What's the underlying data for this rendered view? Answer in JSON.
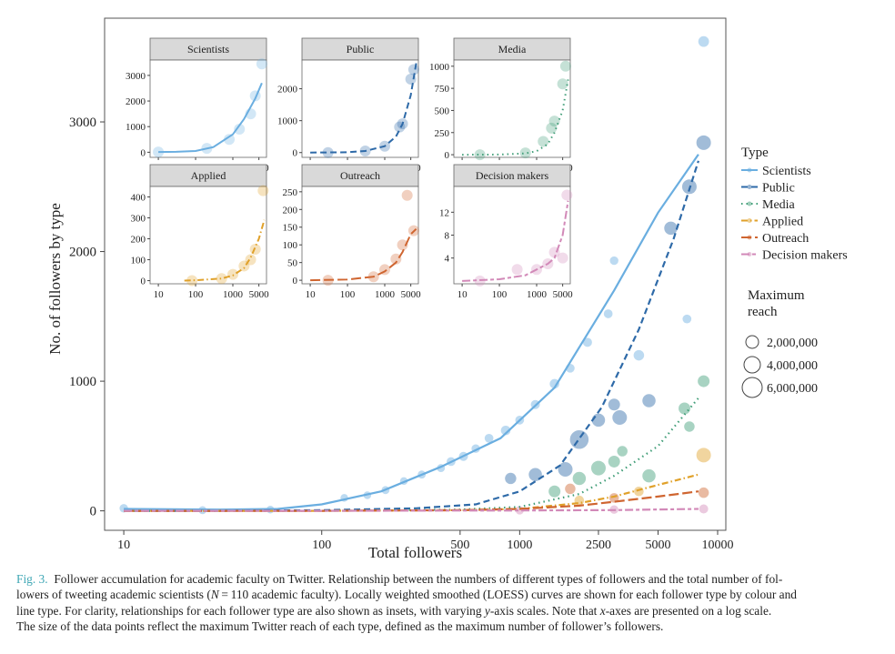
{
  "caption": {
    "label": "Fig. 3.",
    "line1": "Follower accumulation for academic faculty on Twitter. Relationship between the numbers of different types of followers and the total number of fol-",
    "line2a": "lowers of tweeting academic scientists (",
    "line2n": "N",
    "line2b": " = 110 academic faculty). Locally weighted smoothed (LOESS) curves are shown for each follower type by colour and",
    "line3a": "line type. For clarity, relationships for each follower type are also shown as insets, with varying ",
    "line3y": "y",
    "line3b": "-axis scales. Note that ",
    "line3x": "x",
    "line3c": "-axes are presented on a log scale.",
    "line4": "The size of the data points reflect the maximum Twitter reach of each type, defined as the maximum number of follower’s followers."
  },
  "colors": {
    "Scientists": "#6aaee0",
    "Public": "#2e6aa8",
    "Media": "#3f9d77",
    "Applied": "#e0a12a",
    "Outreach": "#cf6530",
    "Decision makers": "#d289b8"
  },
  "chart_data": {
    "type": "scatter",
    "title": "",
    "xlabel": "Total followers",
    "ylabel": "No. of followers by type",
    "x_scale": "log",
    "xlim": [
      8,
      11000
    ],
    "ylim": [
      -150,
      3800
    ],
    "x_ticks": [
      10,
      100,
      500,
      1000,
      2500,
      5000,
      10000
    ],
    "x_tick_labels": [
      "10",
      "100",
      "500",
      "1000",
      "2500",
      "5000",
      "10000"
    ],
    "y_ticks": [
      0,
      1000,
      2000,
      3000
    ],
    "y_tick_labels": [
      "0",
      "1000",
      "2000",
      "3000"
    ],
    "legend": {
      "title": "Type",
      "position": "right",
      "entries": [
        "Scientists",
        "Public",
        "Media",
        "Applied",
        "Outreach",
        "Decision makers"
      ],
      "dash": [
        "solid",
        "dashed",
        "dotted",
        "dashdot",
        "longdash",
        "twodash"
      ]
    },
    "size_legend": {
      "title_line1": "Maximum",
      "title_line2": "reach",
      "labels": [
        "2,000,000",
        "4,000,000",
        "6,000,000"
      ],
      "values": [
        2000000,
        4000000,
        6000000
      ]
    },
    "loess_curves": [
      {
        "name": "Scientists",
        "x": [
          10,
          30,
          60,
          100,
          200,
          400,
          800,
          1500,
          3000,
          5000,
          8000
        ],
        "y": [
          15,
          10,
          15,
          50,
          150,
          340,
          560,
          950,
          1700,
          2300,
          2750
        ]
      },
      {
        "name": "Public",
        "x": [
          10,
          30,
          100,
          300,
          600,
          1000,
          1600,
          2600,
          4000,
          6000,
          8000
        ],
        "y": [
          0,
          0,
          5,
          20,
          50,
          150,
          350,
          800,
          1400,
          2100,
          2700
        ]
      },
      {
        "name": "Media",
        "x": [
          10,
          100,
          500,
          1000,
          2000,
          3000,
          5000,
          8000
        ],
        "y": [
          0,
          0,
          10,
          30,
          130,
          270,
          500,
          870
        ]
      },
      {
        "name": "Applied",
        "x": [
          10,
          100,
          500,
          1000,
          2000,
          3000,
          5000,
          8000
        ],
        "y": [
          0,
          0,
          5,
          15,
          60,
          110,
          200,
          280
        ]
      },
      {
        "name": "Outreach",
        "x": [
          10,
          100,
          500,
          1000,
          2000,
          3000,
          5000,
          8000
        ],
        "y": [
          0,
          0,
          5,
          15,
          40,
          70,
          110,
          150
        ]
      },
      {
        "name": "Decision makers",
        "x": [
          10,
          100,
          500,
          1000,
          3000,
          8000
        ],
        "y": [
          0,
          0,
          2,
          3,
          6,
          15
        ]
      }
    ],
    "points": [
      {
        "series": "Scientists",
        "x": 10,
        "y": 20,
        "reach": 800000
      },
      {
        "series": "Scientists",
        "x": 25,
        "y": 5,
        "reach": 600000
      },
      {
        "series": "Scientists",
        "x": 55,
        "y": 10,
        "reach": 500000
      },
      {
        "series": "Scientists",
        "x": 130,
        "y": 100,
        "reach": 500000
      },
      {
        "series": "Scientists",
        "x": 170,
        "y": 120,
        "reach": 500000
      },
      {
        "series": "Scientists",
        "x": 210,
        "y": 160,
        "reach": 600000
      },
      {
        "series": "Scientists",
        "x": 260,
        "y": 230,
        "reach": 500000
      },
      {
        "series": "Scientists",
        "x": 320,
        "y": 280,
        "reach": 600000
      },
      {
        "series": "Scientists",
        "x": 400,
        "y": 330,
        "reach": 600000
      },
      {
        "series": "Scientists",
        "x": 450,
        "y": 380,
        "reach": 900000
      },
      {
        "series": "Scientists",
        "x": 520,
        "y": 420,
        "reach": 1000000
      },
      {
        "series": "Scientists",
        "x": 600,
        "y": 480,
        "reach": 800000
      },
      {
        "series": "Scientists",
        "x": 700,
        "y": 560,
        "reach": 900000
      },
      {
        "series": "Scientists",
        "x": 850,
        "y": 620,
        "reach": 1200000
      },
      {
        "series": "Scientists",
        "x": 1000,
        "y": 700,
        "reach": 900000
      },
      {
        "series": "Scientists",
        "x": 1200,
        "y": 820,
        "reach": 1000000
      },
      {
        "series": "Scientists",
        "x": 1500,
        "y": 980,
        "reach": 1200000
      },
      {
        "series": "Scientists",
        "x": 1800,
        "y": 1100,
        "reach": 900000
      },
      {
        "series": "Scientists",
        "x": 2200,
        "y": 1300,
        "reach": 1000000
      },
      {
        "series": "Scientists",
        "x": 2800,
        "y": 1520,
        "reach": 900000
      },
      {
        "series": "Scientists",
        "x": 3000,
        "y": 1930,
        "reach": 800000
      },
      {
        "series": "Scientists",
        "x": 4000,
        "y": 1200,
        "reach": 1500000
      },
      {
        "series": "Scientists",
        "x": 7000,
        "y": 1480,
        "reach": 900000
      },
      {
        "series": "Scientists",
        "x": 8500,
        "y": 3620,
        "reach": 1600000
      },
      {
        "series": "Public",
        "x": 900,
        "y": 250,
        "reach": 1800000
      },
      {
        "series": "Public",
        "x": 1200,
        "y": 280,
        "reach": 2500000
      },
      {
        "series": "Public",
        "x": 1700,
        "y": 320,
        "reach": 3000000
      },
      {
        "series": "Public",
        "x": 2000,
        "y": 550,
        "reach": 4500000
      },
      {
        "series": "Public",
        "x": 2500,
        "y": 700,
        "reach": 2500000
      },
      {
        "series": "Public",
        "x": 3000,
        "y": 820,
        "reach": 2000000
      },
      {
        "series": "Public",
        "x": 3200,
        "y": 720,
        "reach": 3000000
      },
      {
        "series": "Public",
        "x": 4500,
        "y": 850,
        "reach": 2500000
      },
      {
        "series": "Public",
        "x": 5800,
        "y": 2180,
        "reach": 2500000
      },
      {
        "series": "Public",
        "x": 7200,
        "y": 2500,
        "reach": 3000000
      },
      {
        "series": "Public",
        "x": 8500,
        "y": 2840,
        "reach": 3000000
      },
      {
        "series": "Media",
        "x": 1500,
        "y": 150,
        "reach": 2000000
      },
      {
        "series": "Media",
        "x": 2000,
        "y": 250,
        "reach": 2500000
      },
      {
        "series": "Media",
        "x": 2500,
        "y": 330,
        "reach": 3000000
      },
      {
        "series": "Media",
        "x": 3000,
        "y": 380,
        "reach": 2000000
      },
      {
        "series": "Media",
        "x": 3300,
        "y": 460,
        "reach": 1500000
      },
      {
        "series": "Media",
        "x": 4500,
        "y": 270,
        "reach": 2500000
      },
      {
        "series": "Media",
        "x": 6800,
        "y": 790,
        "reach": 2000000
      },
      {
        "series": "Media",
        "x": 7200,
        "y": 650,
        "reach": 1500000
      },
      {
        "series": "Media",
        "x": 8500,
        "y": 1000,
        "reach": 2000000
      },
      {
        "series": "Applied",
        "x": 2000,
        "y": 80,
        "reach": 1200000
      },
      {
        "series": "Applied",
        "x": 4000,
        "y": 150,
        "reach": 1200000
      },
      {
        "series": "Applied",
        "x": 8500,
        "y": 430,
        "reach": 3000000
      },
      {
        "series": "Outreach",
        "x": 1800,
        "y": 170,
        "reach": 1500000
      },
      {
        "series": "Outreach",
        "x": 3000,
        "y": 100,
        "reach": 1200000
      },
      {
        "series": "Outreach",
        "x": 8500,
        "y": 140,
        "reach": 1500000
      },
      {
        "series": "Decision makers",
        "x": 1000,
        "y": 5,
        "reach": 800000
      },
      {
        "series": "Decision makers",
        "x": 3000,
        "y": 10,
        "reach": 800000
      },
      {
        "series": "Decision makers",
        "x": 8500,
        "y": 15,
        "reach": 1000000
      }
    ],
    "insets": [
      {
        "title": "Scientists",
        "y_ticks": [
          0,
          1000,
          2000,
          3000
        ],
        "y_tick_labels": [
          "0",
          "1000",
          "2000",
          "3000"
        ],
        "ylim": [
          -200,
          3600
        ],
        "x": [
          10,
          30,
          100,
          300,
          1000,
          2000,
          4000,
          6000
        ],
        "y": [
          10,
          15,
          50,
          200,
          700,
          1300,
          2100,
          2700
        ],
        "pts": [
          [
            10,
            10
          ],
          [
            200,
            150
          ],
          [
            800,
            500
          ],
          [
            1500,
            900
          ],
          [
            3000,
            1500
          ],
          [
            4000,
            2200
          ],
          [
            6000,
            3450
          ]
        ]
      },
      {
        "title": "Public",
        "y_ticks": [
          0,
          1000,
          2000
        ],
        "y_tick_labels": [
          "0",
          "1000",
          "2000"
        ],
        "ylim": [
          -150,
          2900
        ],
        "x": [
          10,
          100,
          300,
          1000,
          2000,
          3000,
          5000,
          7000
        ],
        "y": [
          0,
          10,
          50,
          200,
          500,
          900,
          1800,
          2800
        ],
        "pts": [
          [
            30,
            0
          ],
          [
            300,
            50
          ],
          [
            1000,
            200
          ],
          [
            2500,
            800
          ],
          [
            3000,
            900
          ],
          [
            5000,
            2300
          ],
          [
            6000,
            2600
          ]
        ]
      },
      {
        "title": "Media",
        "y_ticks": [
          0,
          250,
          500,
          750,
          1000
        ],
        "y_tick_labels": [
          "0",
          "250",
          "500",
          "750",
          "1000"
        ],
        "ylim": [
          -30,
          1070
        ],
        "x": [
          10,
          100,
          500,
          1000,
          2000,
          3000,
          5000,
          7000
        ],
        "y": [
          0,
          2,
          15,
          40,
          120,
          250,
          500,
          850
        ],
        "pts": [
          [
            30,
            0
          ],
          [
            500,
            20
          ],
          [
            1500,
            150
          ],
          [
            2500,
            300
          ],
          [
            3000,
            380
          ],
          [
            5000,
            800
          ],
          [
            6000,
            1000
          ]
        ]
      },
      {
        "title": "Applied",
        "y_ticks": [
          0,
          100,
          200,
          300,
          400
        ],
        "y_tick_labels": [
          "0",
          "100",
          "200",
          "300",
          "400"
        ],
        "ylim": [
          -15,
          450
        ],
        "x": [
          50,
          100,
          500,
          1000,
          2000,
          3000,
          5000,
          7000
        ],
        "y": [
          0,
          2,
          10,
          25,
          60,
          110,
          200,
          290
        ],
        "pts": [
          [
            80,
            0
          ],
          [
            500,
            10
          ],
          [
            1000,
            30
          ],
          [
            2000,
            70
          ],
          [
            3000,
            100
          ],
          [
            4000,
            150
          ],
          [
            6500,
            430
          ]
        ]
      },
      {
        "title": "Outreach",
        "y_ticks": [
          0,
          50,
          100,
          150,
          200,
          250
        ],
        "y_tick_labels": [
          "0",
          "50",
          "100",
          "150",
          "200",
          "250"
        ],
        "ylim": [
          -10,
          265
        ],
        "x": [
          10,
          100,
          500,
          1000,
          2000,
          3000,
          5000,
          7000
        ],
        "y": [
          0,
          2,
          10,
          25,
          50,
          80,
          130,
          145
        ],
        "pts": [
          [
            30,
            0
          ],
          [
            500,
            10
          ],
          [
            1000,
            30
          ],
          [
            2000,
            60
          ],
          [
            3000,
            100
          ],
          [
            4000,
            240
          ],
          [
            6000,
            140
          ]
        ]
      },
      {
        "title": "Decision makers",
        "y_ticks": [
          4,
          8,
          12
        ],
        "y_tick_labels": [
          "4",
          "8",
          "12"
        ],
        "ylim": [
          -0.5,
          16.5
        ],
        "x": [
          10,
          100,
          500,
          1000,
          2000,
          3000,
          5000,
          7000
        ],
        "y": [
          0,
          0.3,
          1,
          2,
          3,
          4,
          8,
          14
        ],
        "pts": [
          [
            30,
            0
          ],
          [
            300,
            2
          ],
          [
            1000,
            2
          ],
          [
            2000,
            3
          ],
          [
            3000,
            5
          ],
          [
            5000,
            4
          ],
          [
            6500,
            15
          ]
        ]
      }
    ],
    "inset_x_ticks": [
      10,
      100,
      1000,
      5000
    ],
    "inset_x_tick_labels": [
      "10",
      "100",
      "1000",
      "5000"
    ]
  }
}
